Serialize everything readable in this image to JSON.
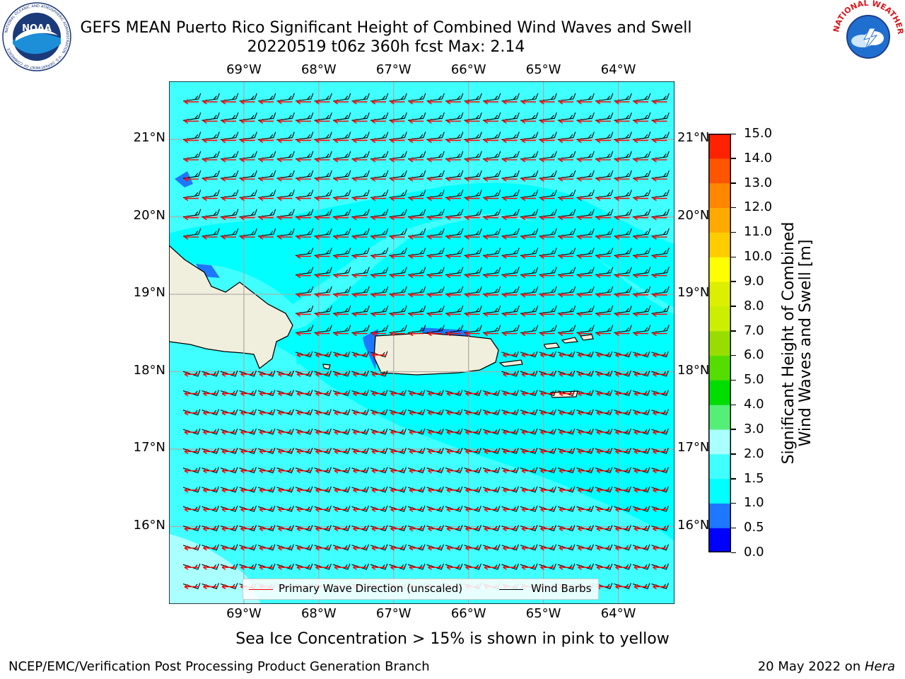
{
  "header": {
    "title_line1": "GEFS MEAN Puerto Rico Significant Height of Combined Wind Waves and Swell",
    "title_line2": "20220519 t06z 360h fcst   Max: 2.14"
  },
  "logos": {
    "noaa_text": "NOAA",
    "noaa_ring_text": "NATIONAL OCEANIC AND ATMOSPHERIC ADMINISTRATION · U.S. DEPARTMENT OF COMMERCE",
    "nws_ring_text": "NATIONAL WEATHER SERVICE"
  },
  "map": {
    "lon_labels": [
      "69°W",
      "68°W",
      "67°W",
      "66°W",
      "65°W",
      "64°W"
    ],
    "lat_labels": [
      "21°N",
      "20°N",
      "19°N",
      "18°N",
      "17°N",
      "16°N"
    ],
    "extent": {
      "lon_min": -70.0,
      "lon_max": -63.25,
      "lat_min": 15.0,
      "lat_max": 21.75
    },
    "ocean_colors": {
      "cyan_1_0_1_5": "#00ffff",
      "cyan_1_5_2_0": "#40ffff",
      "cyan_2_0_3_0": "#aaffff",
      "blue_0_5_1_0": "#1e78ff",
      "land": "#f0eedc"
    },
    "arrow_color": "#ff0000",
    "barb_color": "#000000"
  },
  "legend": {
    "wave_dir_label": "Primary Wave Direction (unscaled)",
    "wind_barbs_label": "Wind Barbs"
  },
  "colorbar": {
    "label": "Significant Height of Combined Wind Waves and Swell [m]",
    "label_line1": "Significant Height of Combined",
    "label_line2": "Wind Waves and Swell [m]",
    "ticks": [
      "15.0",
      "14.0",
      "13.0",
      "12.0",
      "11.0",
      "10.0",
      "9.0",
      "8.0",
      "7.0",
      "6.0",
      "5.0",
      "4.0",
      "3.0",
      "2.0",
      "1.5",
      "1.0",
      "0.5",
      "0.0"
    ],
    "colors": [
      "#0000ff",
      "#1e78ff",
      "#00ffff",
      "#40ffff",
      "#aaffff",
      "#55ee77",
      "#00dd00",
      "#55dd00",
      "#99dd00",
      "#ccee00",
      "#ddee00",
      "#ffff00",
      "#ffcc00",
      "#ffaa00",
      "#ff8800",
      "#ff5500",
      "#ff2200",
      "#ff0000"
    ]
  },
  "notes": {
    "ice": "Sea Ice Concentration > 15% is shown in pink to yellow"
  },
  "footer": {
    "left": "NCEP/EMC/Verification Post Processing Product Generation Branch",
    "right_date": "20 May 2022 on ",
    "right_host": "Hera"
  }
}
